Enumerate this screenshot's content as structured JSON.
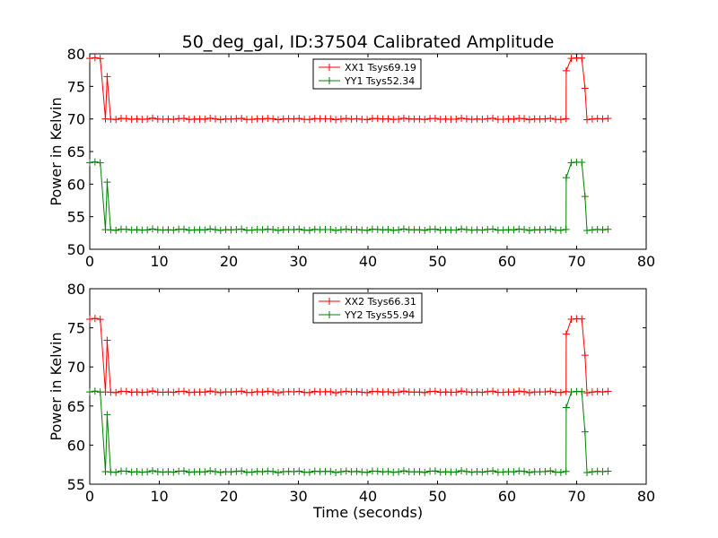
{
  "page": {
    "title": "50_deg_gal, ID:37504 Calibrated Amplitude",
    "xlabel": "Time (seconds)"
  },
  "colors": {
    "XX": "#ff0000",
    "YY": "#008000"
  },
  "chart_data": [
    {
      "type": "line",
      "title": "50_deg_gal, ID:37504 Calibrated Amplitude",
      "xlabel": "",
      "ylabel": "Power in Kelvin",
      "xlim": [
        0,
        80
      ],
      "ylim": [
        50,
        80
      ],
      "xticks": [
        "0",
        "10",
        "20",
        "30",
        "40",
        "50",
        "60",
        "70",
        "80"
      ],
      "yticks": [
        "50",
        "55",
        "60",
        "65",
        "70",
        "75",
        "80"
      ],
      "grid": false,
      "legend_position": "upper-center",
      "series": [
        {
          "name": "XX1 Tsys69.19",
          "color": "#ff0000",
          "marker": "+",
          "x_start": 0,
          "x_end": 74.5,
          "n_points": 100,
          "on_level": 79.3,
          "off_level": 70.0,
          "on_ranges": [
            [
              0,
              2.2
            ],
            [
              68.8,
              70.9
            ]
          ],
          "transitions": [
            [
              2.5,
              76.5
            ],
            [
              68.5,
              77.4
            ],
            [
              71.2,
              74.7
            ]
          ]
        },
        {
          "name": "YY1 Tsys52.34",
          "color": "#008000",
          "marker": "+",
          "x_start": 0,
          "x_end": 74.5,
          "n_points": 100,
          "on_level": 63.3,
          "off_level": 53.0,
          "on_ranges": [
            [
              0,
              2.2
            ],
            [
              68.8,
              70.9
            ]
          ],
          "transitions": [
            [
              2.5,
              60.3
            ],
            [
              68.5,
              61.0
            ],
            [
              71.2,
              58.1
            ]
          ]
        }
      ]
    },
    {
      "type": "line",
      "xlabel": "Time (seconds)",
      "ylabel": "Power in Kelvin",
      "xlim": [
        0,
        80
      ],
      "ylim": [
        55,
        80
      ],
      "xticks": [
        "0",
        "10",
        "20",
        "30",
        "40",
        "50",
        "60",
        "70",
        "80"
      ],
      "yticks": [
        "55",
        "60",
        "65",
        "70",
        "75",
        "80"
      ],
      "grid": false,
      "legend_position": "upper-center",
      "series": [
        {
          "name": "XX2 Tsys66.31",
          "color": "#ff0000",
          "marker": "+",
          "x_start": 0,
          "x_end": 74.5,
          "n_points": 100,
          "on_level": 76.1,
          "off_level": 66.8,
          "on_ranges": [
            [
              0,
              2.2
            ],
            [
              68.8,
              70.9
            ]
          ],
          "transitions": [
            [
              2.5,
              73.4
            ],
            [
              68.5,
              74.2
            ],
            [
              71.2,
              71.5
            ]
          ]
        },
        {
          "name": "YY2 Tsys55.94",
          "color": "#008000",
          "marker": "+",
          "x_start": 0,
          "x_end": 74.5,
          "n_points": 100,
          "on_level": 66.8,
          "off_level": 56.6,
          "on_ranges": [
            [
              0,
              2.2
            ],
            [
              68.8,
              70.9
            ]
          ],
          "transitions": [
            [
              2.5,
              63.9
            ],
            [
              68.5,
              64.8
            ],
            [
              71.2,
              61.7
            ]
          ]
        }
      ]
    }
  ]
}
